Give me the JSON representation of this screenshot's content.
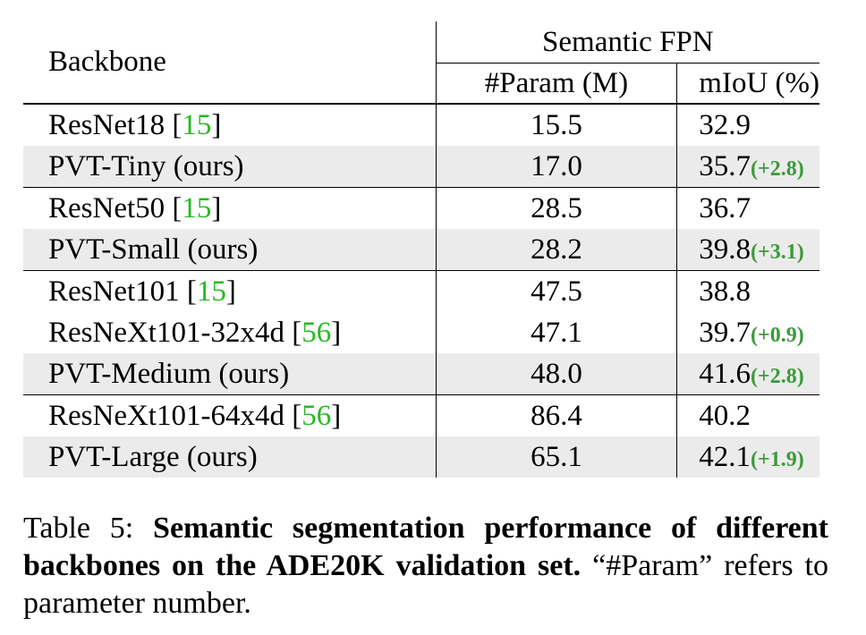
{
  "table": {
    "header": {
      "backbone": "Backbone",
      "group": "Semantic FPN",
      "param": "#Param (M)",
      "miou": "mIoU (%)"
    },
    "rows": [
      {
        "name": "ResNet18 ",
        "cite": "[15]",
        "cite_open": "[",
        "cite_num": "15",
        "cite_close": "]",
        "param": "15.5",
        "miou": "32.9",
        "gain": ""
      },
      {
        "name": "PVT-Tiny (ours)",
        "cite_open": "",
        "cite_num": "",
        "cite_close": "",
        "param": "17.0",
        "miou": "35.7",
        "gain": "(+2.8)"
      },
      {
        "name": "ResNet50 ",
        "cite_open": "[",
        "cite_num": "15",
        "cite_close": "]",
        "param": "28.5",
        "miou": "36.7",
        "gain": ""
      },
      {
        "name": "PVT-Small (ours)",
        "cite_open": "",
        "cite_num": "",
        "cite_close": "",
        "param": "28.2",
        "miou": "39.8",
        "gain": "(+3.1)"
      },
      {
        "name": "ResNet101 ",
        "cite_open": "[",
        "cite_num": "15",
        "cite_close": "]",
        "param": "47.5",
        "miou": "38.8",
        "gain": ""
      },
      {
        "name": "ResNeXt101-32x4d ",
        "cite_open": "[",
        "cite_num": "56",
        "cite_close": "]",
        "param": "47.1",
        "miou": "39.7",
        "gain": "(+0.9)"
      },
      {
        "name": "PVT-Medium (ours)",
        "cite_open": "",
        "cite_num": "",
        "cite_close": "",
        "param": "48.0",
        "miou": "41.6",
        "gain": "(+2.8)"
      },
      {
        "name": "ResNeXt101-64x4d ",
        "cite_open": "[",
        "cite_num": "56",
        "cite_close": "]",
        "param": "86.4",
        "miou": "40.2",
        "gain": ""
      },
      {
        "name": "PVT-Large (ours)",
        "cite_open": "",
        "cite_num": "",
        "cite_close": "",
        "param": "65.1",
        "miou": "42.1",
        "gain": "(+1.9)"
      }
    ]
  },
  "caption": {
    "label": "Table 5: ",
    "bold": "Semantic segmentation performance of different backbones on the ADE20K validation set.",
    "rest": " “#Param” refers to parameter number."
  },
  "colors": {
    "citation": "#22bb22",
    "gain": "#3a9a3a",
    "row_shade": "#ebebeb"
  }
}
